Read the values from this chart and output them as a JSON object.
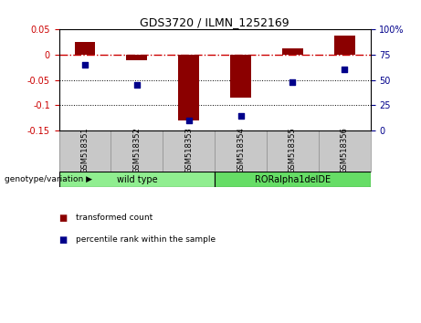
{
  "title": "GDS3720 / ILMN_1252169",
  "samples": [
    "GSM518351",
    "GSM518352",
    "GSM518353",
    "GSM518354",
    "GSM518355",
    "GSM518356"
  ],
  "red_bars": [
    0.025,
    -0.012,
    -0.13,
    -0.085,
    0.012,
    0.037
  ],
  "blue_dots_pct": [
    65,
    45,
    10,
    15,
    48,
    60
  ],
  "ylim_left": [
    -0.15,
    0.05
  ],
  "ylim_right": [
    0,
    100
  ],
  "yticks_left": [
    0.05,
    0,
    -0.05,
    -0.1,
    -0.15
  ],
  "ytick_labels_left": [
    "0.05",
    "0",
    "-0.05",
    "-0.1",
    "-0.15"
  ],
  "yticks_right": [
    100,
    75,
    50,
    25,
    0
  ],
  "ytick_labels_right": [
    "100%",
    "75",
    "50",
    "25",
    "0"
  ],
  "groups": [
    {
      "label": "wild type",
      "indices": [
        0,
        1,
        2
      ],
      "color": "#90EE90"
    },
    {
      "label": "RORalpha1delDE",
      "indices": [
        3,
        4,
        5
      ],
      "color": "#66DD66"
    }
  ],
  "bar_color": "#8B0000",
  "dot_color": "#00008B",
  "zero_line_color": "#CC0000",
  "dotted_line_color": "#000000",
  "bar_width": 0.4,
  "group_label_prefix": "genotype/variation",
  "legend_red": "transformed count",
  "legend_blue": "percentile rank within the sample",
  "sample_area_color": "#C8C8C8",
  "plot_border_color": "#888888"
}
